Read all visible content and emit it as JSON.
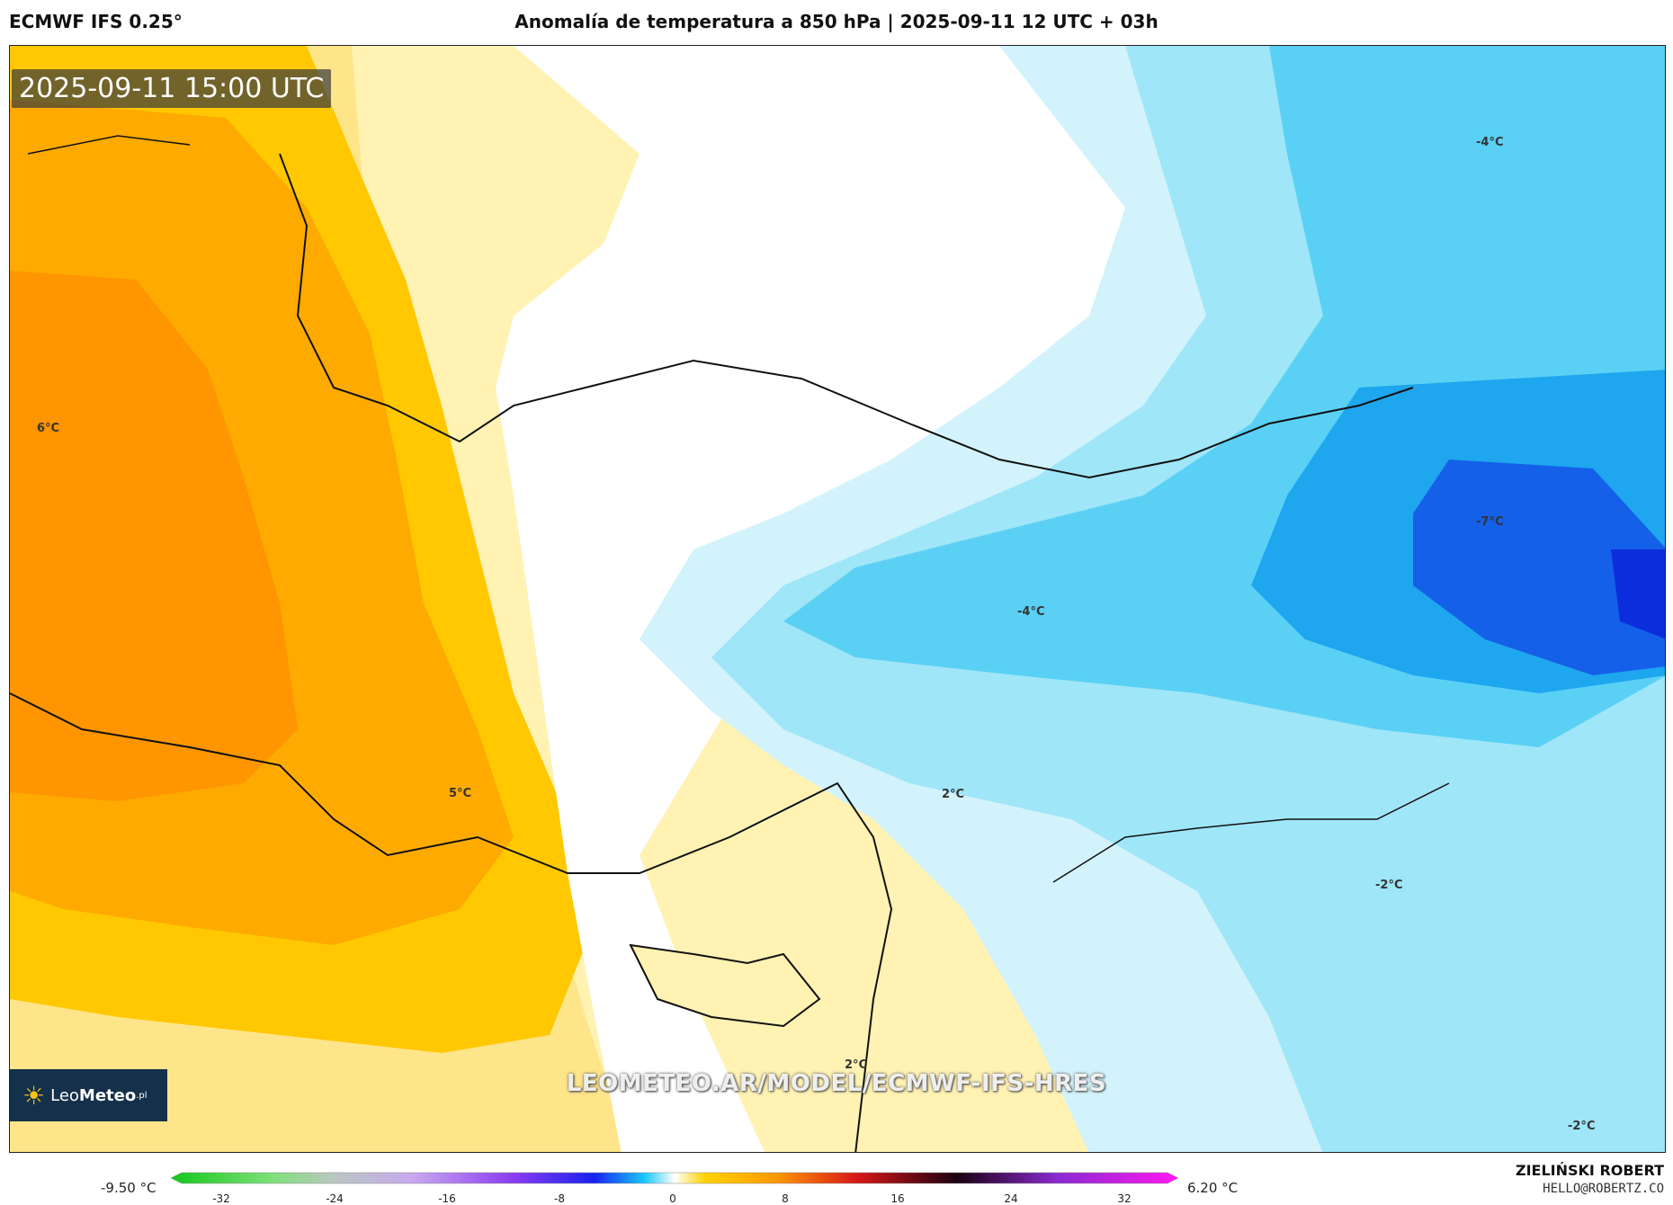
{
  "header": {
    "model": "ECMWF IFS 0.25°",
    "title": "Anomalía de temperatura a 850 hPa | 2025-09-11 12 UTC + 03h"
  },
  "map": {
    "timestamp": "2025-09-11 15:00 UTC",
    "contour_labels": [
      {
        "text": "6°C"
      },
      {
        "text": "5°C"
      },
      {
        "text": "2°C"
      },
      {
        "text": "2°C"
      },
      {
        "text": "-4°C"
      },
      {
        "text": "-4°C"
      },
      {
        "text": "-7°C"
      },
      {
        "text": "-2°C"
      },
      {
        "text": "-2°C"
      }
    ],
    "watermark": "LEOMETEO.AR/MODEL/ECMWF-IFS-HRES",
    "logo": {
      "part1": "Leo",
      "part2": "Meteo",
      "suffix": ".pl"
    }
  },
  "legend": {
    "min_label": "-9.50 °C",
    "max_label": "6.20 °C",
    "ticks": [
      "-32",
      "-24",
      "-16",
      "-8",
      "0",
      "8",
      "16",
      "24",
      "32"
    ],
    "colors": {
      "green": "#12c81a",
      "gray": "#b8c8c0",
      "lavender": "#c9a8f0",
      "purple": "#8a3cf0",
      "blue": "#1822ee",
      "cyan": "#18c8f8",
      "white": "#ffffff",
      "yellow": "#ffd200",
      "orange": "#ff9a00",
      "red": "#d81818",
      "dark": "#1a0010",
      "magenta": "#ff18f0"
    }
  },
  "footer": {
    "author": "ZIELIŃSKI ROBERT",
    "email": "HELLO@ROBERTZ.CO"
  }
}
